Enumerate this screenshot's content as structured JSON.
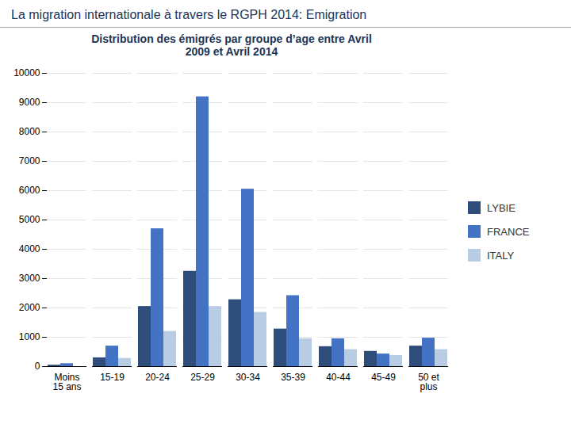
{
  "chart_data": {
    "type": "bar",
    "title": "La migration internationale à travers le RGPH 2014: Emigration",
    "subtitle": "Distribution des émigrés par groupe d’age entre  Avril\n2009 et Avril 2014",
    "categories": [
      "Moins\n15 ans",
      "15-19",
      "20-24",
      "25-29",
      "30-34",
      "35-39",
      "40-44",
      "45-49",
      "50 et\nplus"
    ],
    "series": [
      {
        "name": "LYBIE",
        "color": "#2E4D7B",
        "values": [
          50,
          300,
          2050,
          3250,
          2280,
          1280,
          680,
          520,
          700
        ]
      },
      {
        "name": "FRANCE",
        "color": "#4472C4",
        "values": [
          100,
          700,
          4700,
          9200,
          6050,
          2420,
          950,
          430,
          970
        ]
      },
      {
        "name": "ITALY",
        "color": "#B8CCE4",
        "values": [
          0,
          280,
          1200,
          2050,
          1850,
          950,
          580,
          380,
          580
        ]
      }
    ],
    "ylim": [
      0,
      10000
    ],
    "yticks": [
      0,
      1000,
      2000,
      3000,
      4000,
      5000,
      6000,
      7000,
      8000,
      9000,
      10000
    ],
    "grid": true,
    "legend": "right"
  }
}
